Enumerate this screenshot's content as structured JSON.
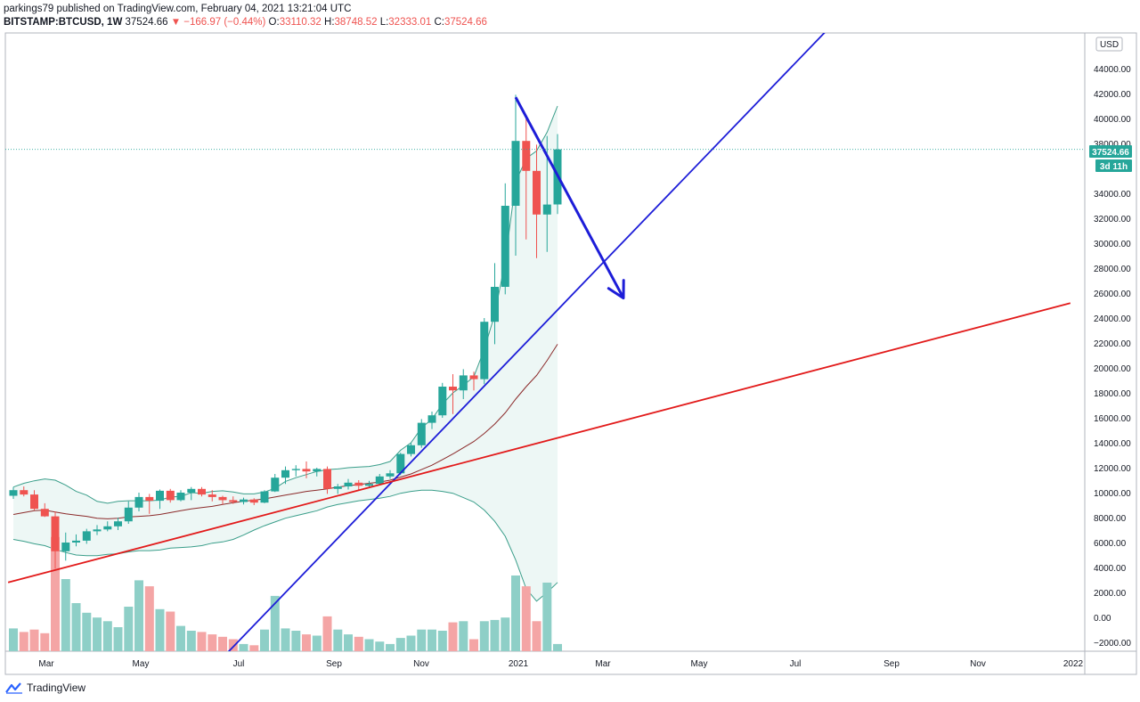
{
  "header": {
    "line1": "parkings79 published on TradingView.com, February 04, 2021 13:21:04 UTC",
    "symbol": "BITSTAMP:BTCUSD, 1W",
    "price": "37524.66",
    "change": "▼ −166.97 (−0.44%)",
    "o_label": "O:",
    "o_val": "33110.32",
    "h_label": "H:",
    "h_val": "38748.52",
    "l_label": "L:",
    "l_val": "32333.01",
    "c_label": "C:",
    "c_val": "37524.66"
  },
  "price_axis": {
    "currency": "USD",
    "last_price_label": "37524.66",
    "countdown_label": "3d 11h",
    "tick_labels": [
      "44000.00",
      "42000.00",
      "40000.00",
      "38000.00",
      "34000.00",
      "32000.00",
      "30000.00",
      "28000.00",
      "26000.00",
      "24000.00",
      "22000.00",
      "20000.00",
      "18000.00",
      "16000.00",
      "14000.00",
      "12000.00",
      "10000.00",
      "8000.00",
      "6000.00",
      "4000.00",
      "2000.00",
      "0.00",
      "−2000.00"
    ]
  },
  "time_axis": {
    "labels": [
      "Mar",
      "May",
      "Jul",
      "Sep",
      "Nov",
      "2021",
      "Mar",
      "May",
      "Jul",
      "Sep",
      "Nov",
      "2022"
    ]
  },
  "footer": {
    "brand": "TradingView"
  },
  "colors": {
    "up": "#26a69a",
    "down": "#ef5350",
    "volume_up": "#8ecfc7",
    "volume_down": "#f4a5a5",
    "trend_blue": "#1d1dd8",
    "trend_red": "#e21a1a",
    "band": "#3a9e8a",
    "band_fill": "#e8f5f2",
    "basis": "#8b2a2a"
  },
  "chart_data": {
    "type": "candlestick",
    "symbol": "BITSTAMP:BTCUSD",
    "interval": "1W",
    "y_range": [
      -2000,
      46000
    ],
    "candles": [
      {
        "o": 9750,
        "h": 10450,
        "l": 9500,
        "c": 10200
      },
      {
        "o": 10200,
        "h": 10500,
        "l": 9700,
        "c": 9850
      },
      {
        "o": 9850,
        "h": 10200,
        "l": 8600,
        "c": 8700
      },
      {
        "o": 8700,
        "h": 9150,
        "l": 8050,
        "c": 8100
      },
      {
        "o": 8100,
        "h": 8500,
        "l": 3900,
        "c": 5300
      },
      {
        "o": 5300,
        "h": 6800,
        "l": 4550,
        "c": 6000
      },
      {
        "o": 6000,
        "h": 6650,
        "l": 5700,
        "c": 6150
      },
      {
        "o": 6150,
        "h": 7100,
        "l": 5900,
        "c": 6900
      },
      {
        "o": 6900,
        "h": 7400,
        "l": 6600,
        "c": 7050
      },
      {
        "o": 7050,
        "h": 7700,
        "l": 6900,
        "c": 7300
      },
      {
        "o": 7300,
        "h": 8000,
        "l": 7000,
        "c": 7700
      },
      {
        "o": 7700,
        "h": 9300,
        "l": 7500,
        "c": 8800
      },
      {
        "o": 8800,
        "h": 10000,
        "l": 8500,
        "c": 9650
      },
      {
        "o": 9650,
        "h": 9900,
        "l": 8300,
        "c": 9350
      },
      {
        "o": 9350,
        "h": 10250,
        "l": 8700,
        "c": 10150
      },
      {
        "o": 10150,
        "h": 10300,
        "l": 9200,
        "c": 9400
      },
      {
        "o": 9400,
        "h": 10200,
        "l": 9300,
        "c": 10000
      },
      {
        "o": 10000,
        "h": 10450,
        "l": 9400,
        "c": 10300
      },
      {
        "o": 10300,
        "h": 10450,
        "l": 9700,
        "c": 9850
      },
      {
        "o": 9850,
        "h": 10200,
        "l": 9300,
        "c": 9650
      },
      {
        "o": 9650,
        "h": 9750,
        "l": 9050,
        "c": 9400
      },
      {
        "o": 9400,
        "h": 9700,
        "l": 9100,
        "c": 9250
      },
      {
        "o": 9250,
        "h": 9600,
        "l": 9050,
        "c": 9450
      },
      {
        "o": 9450,
        "h": 9550,
        "l": 9000,
        "c": 9200
      },
      {
        "o": 9200,
        "h": 10200,
        "l": 9150,
        "c": 10100
      },
      {
        "o": 10100,
        "h": 11500,
        "l": 10050,
        "c": 11200
      },
      {
        "o": 11200,
        "h": 12100,
        "l": 10700,
        "c": 11800
      },
      {
        "o": 11800,
        "h": 12200,
        "l": 11300,
        "c": 11900
      },
      {
        "o": 11900,
        "h": 12500,
        "l": 11150,
        "c": 11700
      },
      {
        "o": 11700,
        "h": 12000,
        "l": 11300,
        "c": 11900
      },
      {
        "o": 11900,
        "h": 12100,
        "l": 9900,
        "c": 10300
      },
      {
        "o": 10300,
        "h": 10700,
        "l": 9900,
        "c": 10500
      },
      {
        "o": 10500,
        "h": 11100,
        "l": 10250,
        "c": 10800
      },
      {
        "o": 10800,
        "h": 11000,
        "l": 10200,
        "c": 10550
      },
      {
        "o": 10550,
        "h": 10950,
        "l": 10400,
        "c": 10700
      },
      {
        "o": 10700,
        "h": 11500,
        "l": 10600,
        "c": 11300
      },
      {
        "o": 11300,
        "h": 11800,
        "l": 11100,
        "c": 11550
      },
      {
        "o": 11550,
        "h": 13200,
        "l": 11400,
        "c": 13100
      },
      {
        "o": 13100,
        "h": 14000,
        "l": 12900,
        "c": 13800
      },
      {
        "o": 13800,
        "h": 15900,
        "l": 13600,
        "c": 15600
      },
      {
        "o": 15600,
        "h": 16500,
        "l": 15100,
        "c": 16200
      },
      {
        "o": 16200,
        "h": 18800,
        "l": 16000,
        "c": 18500
      },
      {
        "o": 18500,
        "h": 19500,
        "l": 16300,
        "c": 18200
      },
      {
        "o": 18200,
        "h": 19900,
        "l": 17500,
        "c": 19400
      },
      {
        "o": 19400,
        "h": 19700,
        "l": 18200,
        "c": 19100
      },
      {
        "o": 19100,
        "h": 24000,
        "l": 18700,
        "c": 23700
      },
      {
        "o": 23700,
        "h": 28400,
        "l": 21900,
        "c": 26500
      },
      {
        "o": 26500,
        "h": 34800,
        "l": 25900,
        "c": 33000
      },
      {
        "o": 33000,
        "h": 41900,
        "l": 29000,
        "c": 38200
      },
      {
        "o": 38200,
        "h": 40000,
        "l": 30300,
        "c": 35800
      },
      {
        "o": 35800,
        "h": 37900,
        "l": 28800,
        "c": 32300
      },
      {
        "o": 32300,
        "h": 38600,
        "l": 29300,
        "c": 33100
      },
      {
        "o": 33110.32,
        "h": 38748.52,
        "l": 32333.01,
        "c": 37524.66
      }
    ],
    "volume": [
      1900,
      1600,
      1800,
      1500,
      9500,
      6000,
      4000,
      3200,
      2800,
      2500,
      2000,
      3700,
      5900,
      5400,
      3500,
      3300,
      2100,
      1700,
      1600,
      1400,
      1200,
      1000,
      600,
      500,
      1800,
      4600,
      1900,
      1700,
      1400,
      1300,
      2900,
      1800,
      1400,
      1200,
      1000,
      800,
      600,
      1100,
      1300,
      1800,
      1800,
      1700,
      2400,
      2500,
      1000,
      2500,
      2600,
      2800,
      6300,
      5400,
      2500,
      5700,
      600
    ],
    "bollinger": {
      "period": 20,
      "upper": [
        10450,
        10750,
        10950,
        11100,
        11000,
        10600,
        10100,
        9800,
        9300,
        9150,
        9300,
        9350,
        9350,
        9350,
        9400,
        9650,
        9700,
        10000,
        9950,
        10100,
        10150,
        10050,
        9900,
        9900,
        10050,
        10350,
        10900,
        11200,
        11450,
        11700,
        11850,
        11900,
        12000,
        12050,
        12100,
        12250,
        12500,
        13400,
        14000,
        15200,
        15900,
        17100,
        18000,
        18600,
        19300,
        21500,
        24300,
        28600,
        34900,
        36800,
        37400,
        38900,
        41000
      ],
      "basis": [
        8250,
        8400,
        8550,
        8600,
        8450,
        8300,
        8200,
        8100,
        7950,
        7900,
        7950,
        8050,
        8100,
        8150,
        8250,
        8400,
        8550,
        8700,
        8800,
        8900,
        9050,
        9200,
        9300,
        9400,
        9500,
        9650,
        9800,
        9950,
        10100,
        10200,
        10300,
        10450,
        10550,
        10650,
        10750,
        10850,
        11000,
        11250,
        11500,
        11850,
        12200,
        12650,
        13100,
        13600,
        14100,
        14750,
        15500,
        16400,
        17500,
        18500,
        19400,
        20600,
        21900
      ],
      "lower": [
        6250,
        6100,
        5900,
        5750,
        5450,
        5200,
        5000,
        4950,
        4950,
        5050,
        5100,
        5250,
        5350,
        5350,
        5400,
        5550,
        5600,
        5650,
        5750,
        5950,
        6050,
        6250,
        6600,
        7000,
        7350,
        7650,
        7950,
        8150,
        8350,
        8550,
        8850,
        9050,
        9200,
        9350,
        9450,
        9550,
        9700,
        9950,
        10100,
        10200,
        10200,
        10100,
        9950,
        9600,
        9250,
        8600,
        7700,
        6500,
        4600,
        2300,
        1300,
        2000,
        2800
      ]
    },
    "trendlines": [
      {
        "color": "blue",
        "from": {
          "bar": 20.5,
          "price": -2800
        },
        "to": {
          "bar": 78.8,
          "price": 48000
        }
      },
      {
        "color": "red",
        "from": {
          "bar": -0.5,
          "price": 2800
        },
        "to": {
          "bar": 101,
          "price": 25200
        }
      },
      {
        "color": "blue",
        "arrow": true,
        "from": {
          "bar": 48.0,
          "price": 41700
        },
        "to": {
          "bar": 58.3,
          "price": 25600
        }
      }
    ]
  }
}
